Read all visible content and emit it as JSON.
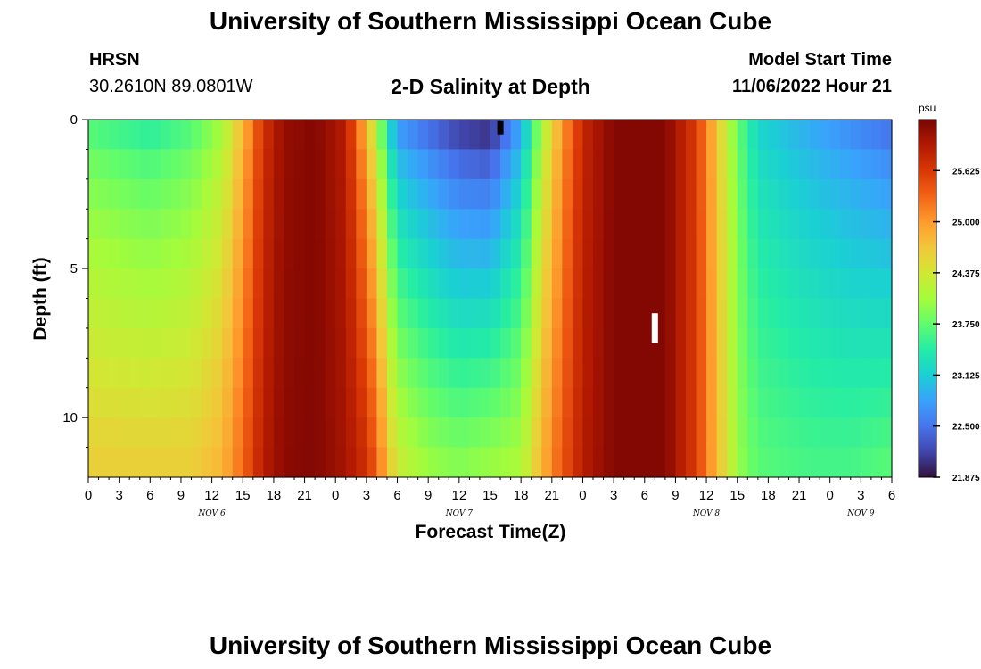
{
  "header": {
    "title": "University of Southern Mississippi Ocean Cube",
    "station": "HRSN",
    "coords": "30.2610N  89.0801W",
    "subtitle": "2-D Salinity at Depth",
    "model_start_label": "Model Start Time",
    "model_start_value": "11/06/2022 Hour 21",
    "footer_title": "University of Southern Mississippi Ocean Cube"
  },
  "chart_data": {
    "type": "heatmap",
    "title": "2-D Salinity at Depth",
    "xlabel": "Forecast Time(Z)",
    "ylabel": "Depth (ft)",
    "x_tick_labels": [
      "0",
      "3",
      "6",
      "9",
      "12",
      "15",
      "18",
      "21",
      "0",
      "3",
      "6",
      "9",
      "12",
      "15",
      "18",
      "21",
      "0",
      "3",
      "6",
      "9",
      "12",
      "15",
      "18",
      "21",
      "0",
      "3",
      "6"
    ],
    "x_hour_range": [
      0,
      78
    ],
    "date_labels": [
      {
        "label": "NOV 6",
        "hour": 12
      },
      {
        "label": "NOV 7",
        "hour": 36
      },
      {
        "label": "NOV 8",
        "hour": 60
      },
      {
        "label": "NOV 9",
        "hour": 75
      }
    ],
    "y_ticks": [
      0,
      5,
      10
    ],
    "ylim": [
      0,
      12
    ],
    "y_inverted": true,
    "colorbar": {
      "unit": "psu",
      "min": 21.875,
      "max": 26.25,
      "tick_values": [
        21.875,
        22.5,
        23.125,
        23.75,
        24.375,
        25.0,
        25.625
      ],
      "tick_labels": [
        "21.875",
        "22.500",
        "23.125",
        "23.750",
        "24.375",
        "25.000",
        "25.625"
      ],
      "colors": [
        "#30123b",
        "#4145ab",
        "#4675ed",
        "#39a2fc",
        "#1bcfd4",
        "#24eca6",
        "#61fc6c",
        "#a4fc3b",
        "#d1e834",
        "#f3c63a",
        "#fe9b2d",
        "#f36315",
        "#d93806",
        "#b11901",
        "#7a0403"
      ]
    },
    "cells": {
      "hours": 78,
      "depth_levels": 12,
      "time_keyframes": [
        {
          "hour": 0,
          "surface": 23.7,
          "bottom": 24.6
        },
        {
          "hour": 6,
          "surface": 23.5,
          "bottom": 24.6
        },
        {
          "hour": 10,
          "surface": 23.7,
          "bottom": 24.6
        },
        {
          "hour": 13,
          "surface": 24.1,
          "bottom": 24.8
        },
        {
          "hour": 15,
          "surface": 24.8,
          "bottom": 25.3
        },
        {
          "hour": 17,
          "surface": 25.7,
          "bottom": 25.9
        },
        {
          "hour": 19,
          "surface": 26.1,
          "bottom": 26.15
        },
        {
          "hour": 22,
          "surface": 26.2,
          "bottom": 26.2
        },
        {
          "hour": 25,
          "surface": 25.9,
          "bottom": 26.0
        },
        {
          "hour": 27,
          "surface": 24.8,
          "bottom": 25.7
        },
        {
          "hour": 28,
          "surface": 24.2,
          "bottom": 25.3
        },
        {
          "hour": 29,
          "surface": 23.4,
          "bottom": 24.8
        },
        {
          "hour": 30,
          "surface": 22.8,
          "bottom": 24.3
        },
        {
          "hour": 33,
          "surface": 22.5,
          "bottom": 24.0
        },
        {
          "hour": 36,
          "surface": 22.2,
          "bottom": 23.9
        },
        {
          "hour": 39,
          "surface": 22.1,
          "bottom": 24.0
        },
        {
          "hour": 42,
          "surface": 22.9,
          "bottom": 24.1
        },
        {
          "hour": 44,
          "surface": 24.1,
          "bottom": 24.8
        },
        {
          "hour": 46,
          "surface": 25.0,
          "bottom": 25.4
        },
        {
          "hour": 48,
          "surface": 25.8,
          "bottom": 25.9
        },
        {
          "hour": 51,
          "surface": 26.2,
          "bottom": 26.2
        },
        {
          "hour": 56,
          "surface": 26.2,
          "bottom": 26.2
        },
        {
          "hour": 59,
          "surface": 25.6,
          "bottom": 25.6
        },
        {
          "hour": 61,
          "surface": 24.7,
          "bottom": 24.8
        },
        {
          "hour": 63,
          "surface": 23.8,
          "bottom": 24.0
        },
        {
          "hour": 65,
          "surface": 23.2,
          "bottom": 23.7
        },
        {
          "hour": 70,
          "surface": 22.9,
          "bottom": 23.6
        },
        {
          "hour": 74,
          "surface": 22.7,
          "bottom": 23.6
        },
        {
          "hour": 78,
          "surface": 22.5,
          "bottom": 23.7
        }
      ],
      "missing_markers": [
        {
          "hour": 40,
          "depth_from": 0.05,
          "depth_to": 0.5,
          "color": "#000000"
        },
        {
          "hour": 55,
          "depth_from": 6.5,
          "depth_to": 7.5,
          "color": "#ffffff"
        }
      ]
    }
  }
}
